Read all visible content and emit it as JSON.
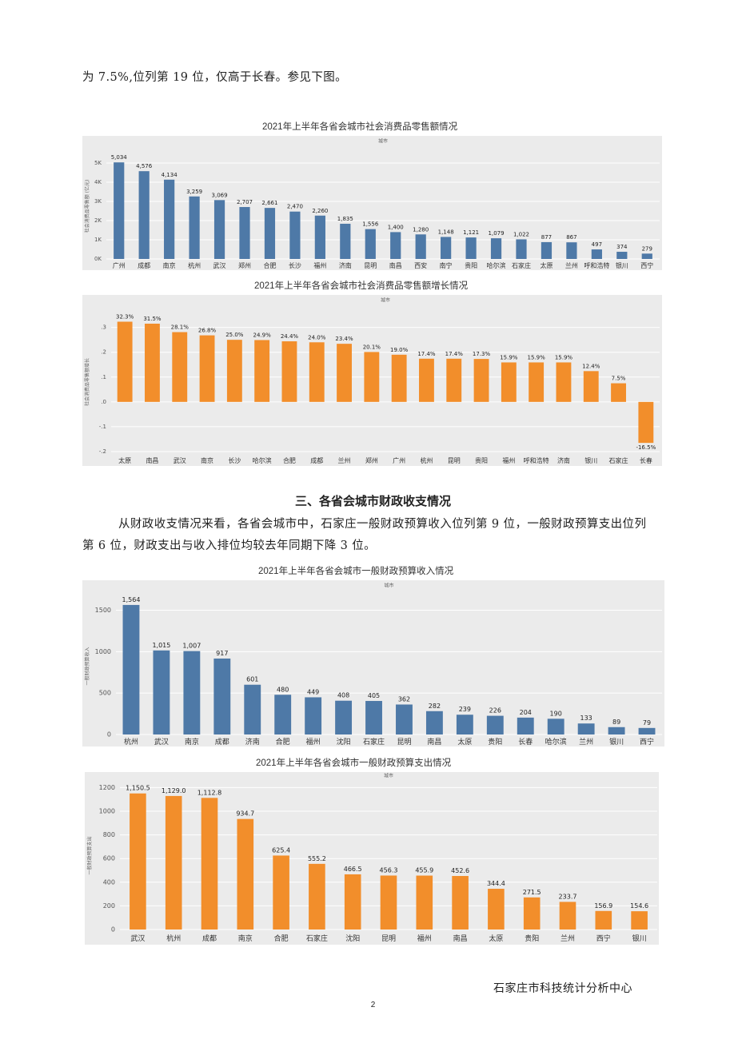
{
  "body": {
    "intro_line": "为 7.5%,位列第 19 位，仅高于长春。参见下图。",
    "section_heading": "三、各省会城市财政收支情况",
    "paragraph_line1": "从财政收支情况来看，各省会城市中，石家庄一般财政预算收入位列第 9 位，一般财政预算支出位列",
    "paragraph_line2": "第 6 位，财政支出与收入排位均较去年同期下降 3 位。"
  },
  "footer": {
    "org": "石家庄市科技统计分析中心",
    "page_number": "2"
  },
  "colors": {
    "blue": "#4e79a7",
    "orange": "#f28e2b",
    "panel": "#ebebeb",
    "grid": "#ffffff"
  },
  "chart_data": [
    {
      "type": "bar",
      "title": "2021年上半年各省会城市社会消费品零售额情况",
      "header": "城市",
      "ylabel": "社会消费品零售额 (亿元)",
      "categories": [
        "广州",
        "成都",
        "南京",
        "杭州",
        "武汉",
        "郑州",
        "合肥",
        "长沙",
        "福州",
        "济南",
        "昆明",
        "南昌",
        "西安",
        "南宁",
        "贵阳",
        "哈尔滨",
        "石家庄",
        "太原",
        "兰州",
        "呼和浩特",
        "银川",
        "西宁"
      ],
      "values": [
        5034,
        4576,
        4134,
        3259,
        3069,
        2707,
        2661,
        2470,
        2260,
        1835,
        1556,
        1400,
        1280,
        1148,
        1121,
        1079,
        1022,
        877,
        867,
        497,
        374,
        279
      ],
      "labels": [
        "5,034",
        "4,576",
        "4,134",
        "3,259",
        "3,069",
        "2,707",
        "2,661",
        "2,470",
        "2,260",
        "1,835",
        "1,556",
        "1,400",
        "1,280",
        "1,148",
        "1,121",
        "1,079",
        "1,022",
        "877",
        "867",
        "497",
        "374",
        "279"
      ],
      "yticks": [
        "0K",
        "1K",
        "2K",
        "3K",
        "4K",
        "5K"
      ],
      "ylim": [
        0,
        5500
      ],
      "color": "blue"
    },
    {
      "type": "bar",
      "title": "2021年上半年各省会城市社会消费品零售额增长情况",
      "header": "城市",
      "ylabel": "社会消费品零售额增长",
      "categories": [
        "太原",
        "南昌",
        "武汉",
        "南京",
        "长沙",
        "哈尔滨",
        "合肥",
        "成都",
        "兰州",
        "郑州",
        "广州",
        "杭州",
        "昆明",
        "贵阳",
        "福州",
        "呼和浩特",
        "济南",
        "银川",
        "石家庄",
        "长春"
      ],
      "values": [
        0.323,
        0.315,
        0.281,
        0.268,
        0.25,
        0.249,
        0.244,
        0.24,
        0.234,
        0.201,
        0.19,
        0.174,
        0.174,
        0.173,
        0.159,
        0.159,
        0.159,
        0.124,
        0.075,
        -0.165
      ],
      "labels": [
        "32.3%",
        "31.5%",
        "28.1%",
        "26.8%",
        "25.0%",
        "24.9%",
        "24.4%",
        "24.0%",
        "23.4%",
        "20.1%",
        "19.0%",
        "17.4%",
        "17.4%",
        "17.3%",
        "15.9%",
        "15.9%",
        "15.9%",
        "12.4%",
        "7.5%",
        "-16.5%"
      ],
      "yticks": [
        "-.2",
        "-.1",
        ".0",
        ".1",
        ".2",
        ".3"
      ],
      "ylim": [
        -0.2,
        0.36
      ],
      "color": "orange"
    },
    {
      "type": "bar",
      "title": "2021年上半年各省会城市一般财政预算收入情况",
      "header": "城市",
      "ylabel": "一般财政预算收入",
      "categories": [
        "杭州",
        "武汉",
        "南京",
        "成都",
        "济南",
        "合肥",
        "福州",
        "沈阳",
        "石家庄",
        "昆明",
        "南昌",
        "太原",
        "贵阳",
        "长春",
        "哈尔滨",
        "兰州",
        "银川",
        "西宁"
      ],
      "values": [
        1564,
        1015,
        1007,
        917,
        601,
        480,
        449,
        408,
        405,
        362,
        282,
        239,
        226,
        204,
        190,
        133,
        89,
        79
      ],
      "labels": [
        "1,564",
        "1,015",
        "1,007",
        "917",
        "601",
        "480",
        "449",
        "408",
        "405",
        "362",
        "282",
        "239",
        "226",
        "204",
        "190",
        "133",
        "89",
        "79"
      ],
      "yticks": [
        "0",
        "500",
        "1000",
        "1500"
      ],
      "ylim": [
        0,
        1650
      ],
      "color": "blue"
    },
    {
      "type": "bar",
      "title": "2021年上半年各省会城市一般财政预算支出情况",
      "header": "城市",
      "ylabel": "一般财政预算支出",
      "categories": [
        "武汉",
        "杭州",
        "成都",
        "南京",
        "合肥",
        "石家庄",
        "沈阳",
        "昆明",
        "福州",
        "南昌",
        "太原",
        "贵阳",
        "兰州",
        "西宁",
        "银川"
      ],
      "values": [
        1150.5,
        1129.0,
        1112.8,
        934.7,
        625.4,
        555.2,
        466.5,
        456.3,
        455.9,
        452.6,
        344.4,
        271.5,
        233.7,
        156.9,
        154.6
      ],
      "labels": [
        "1,150.5",
        "1,129.0",
        "1,112.8",
        "934.7",
        "625.4",
        "555.2",
        "466.5",
        "456.3",
        "455.9",
        "452.6",
        "344.4",
        "271.5",
        "233.7",
        "156.9",
        "154.6"
      ],
      "yticks": [
        "0",
        "200",
        "400",
        "600",
        "800",
        "1000",
        "1200"
      ],
      "ylim": [
        0,
        1250
      ],
      "color": "orange"
    }
  ]
}
